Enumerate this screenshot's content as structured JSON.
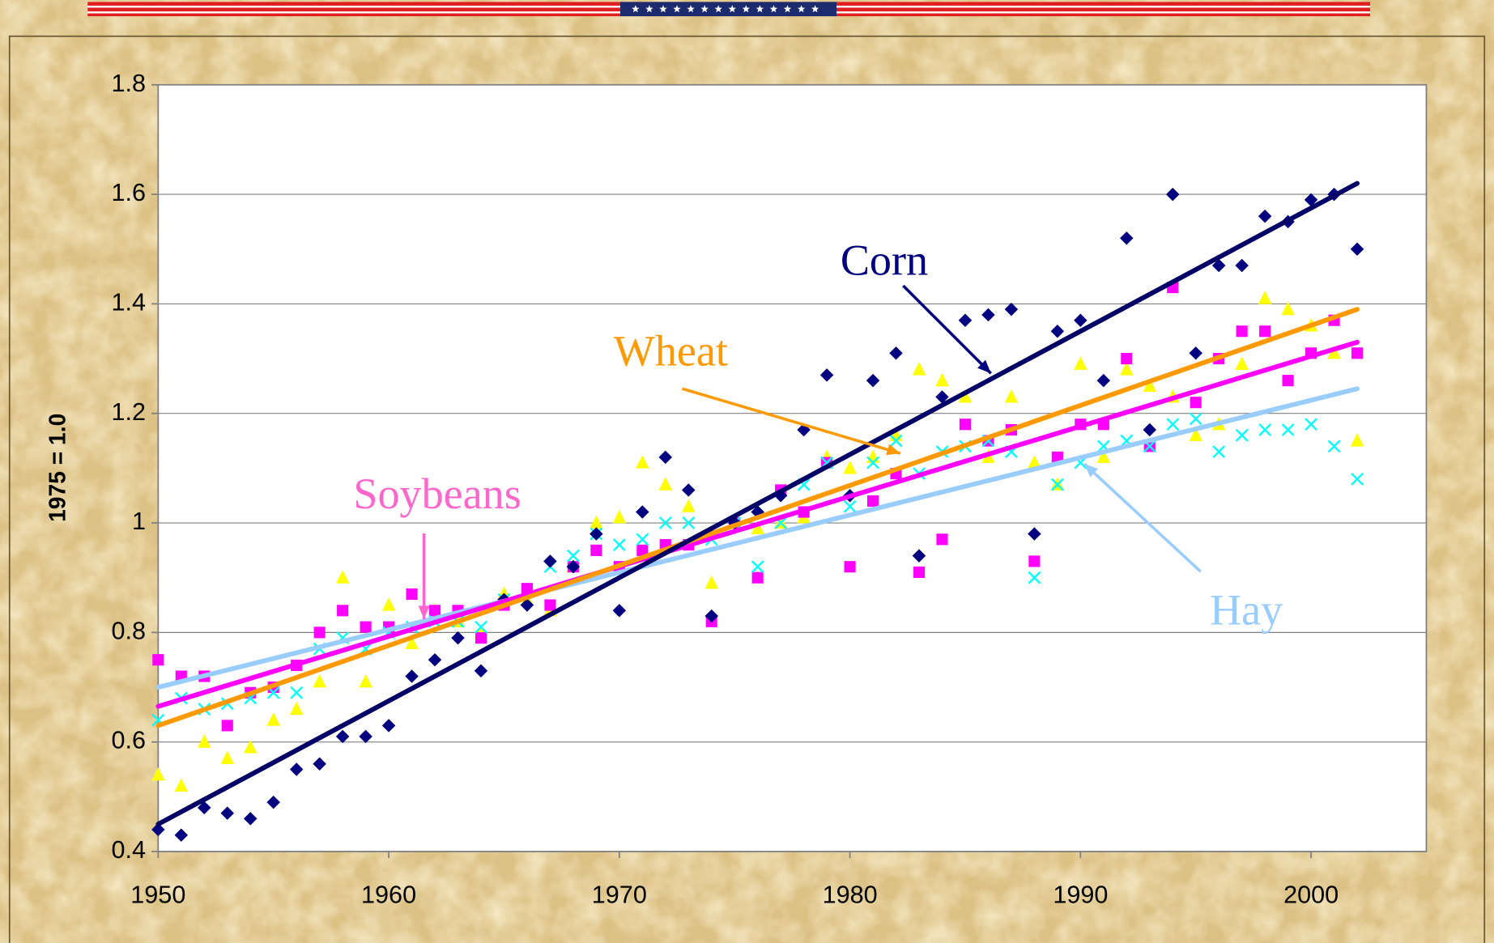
{
  "chart_data": {
    "type": "scatter",
    "y_label": "1975 = 1.0",
    "x": [
      1950,
      1951,
      1952,
      1953,
      1954,
      1955,
      1956,
      1957,
      1958,
      1959,
      1960,
      1961,
      1962,
      1963,
      1964,
      1965,
      1966,
      1967,
      1968,
      1969,
      1970,
      1971,
      1972,
      1973,
      1974,
      1975,
      1976,
      1977,
      1978,
      1979,
      1980,
      1981,
      1982,
      1983,
      1984,
      1985,
      1986,
      1987,
      1988,
      1989,
      1990,
      1991,
      1992,
      1993,
      1994,
      1995,
      1996,
      1997,
      1998,
      1999,
      2000,
      2001,
      2002
    ],
    "trend_x": [
      1950,
      2002
    ],
    "xlim": [
      1950,
      2005
    ],
    "xticks": [
      1950,
      1960,
      1970,
      1980,
      1990,
      2000
    ],
    "ylim": [
      0.4,
      1.8
    ],
    "yticks": [
      0.4,
      0.6,
      0.8,
      1,
      1.2,
      1.4,
      1.6,
      1.8
    ],
    "grid": true,
    "series": [
      {
        "name": "Corn",
        "marker": "diamond",
        "color": "#000080",
        "trend_color": "#000066",
        "label_color": "#000080",
        "values": [
          0.44,
          0.43,
          0.48,
          0.47,
          0.46,
          0.49,
          0.55,
          0.56,
          0.61,
          0.61,
          0.63,
          0.72,
          0.75,
          0.79,
          0.73,
          0.86,
          0.85,
          0.93,
          0.92,
          0.98,
          0.84,
          1.02,
          1.12,
          1.06,
          0.83,
          1.0,
          1.02,
          1.05,
          1.17,
          1.27,
          1.05,
          1.26,
          1.31,
          0.94,
          1.23,
          1.37,
          1.38,
          1.39,
          0.98,
          1.35,
          1.37,
          1.26,
          1.52,
          1.17,
          1.6,
          1.31,
          1.47,
          1.47,
          1.56,
          1.55,
          1.59,
          1.6,
          1.5
        ],
        "trend": [
          0.45,
          1.62
        ]
      },
      {
        "name": "Wheat",
        "marker": "triangle",
        "color": "#ffff00",
        "trend_color": "#ff9900",
        "label_color": "#ff9900",
        "values": [
          0.54,
          0.52,
          0.6,
          0.57,
          0.59,
          0.64,
          0.66,
          0.71,
          0.9,
          0.71,
          0.85,
          0.78,
          0.84,
          0.82,
          0.8,
          0.87,
          0.86,
          0.84,
          0.92,
          1.0,
          1.01,
          1.11,
          1.07,
          1.03,
          0.89,
          1.0,
          0.99,
          1.0,
          1.01,
          1.12,
          1.1,
          1.12,
          1.16,
          1.28,
          1.26,
          1.23,
          1.12,
          1.23,
          1.11,
          1.07,
          1.29,
          1.12,
          1.28,
          1.25,
          1.23,
          1.16,
          1.18,
          1.29,
          1.41,
          1.39,
          1.36,
          1.31,
          1.15
        ],
        "trend": [
          0.63,
          1.39
        ]
      },
      {
        "name": "Soybeans",
        "marker": "square",
        "color": "#ff00ff",
        "trend_color": "#ff00ff",
        "label_color": "#ff66cc",
        "values": [
          0.75,
          0.72,
          0.72,
          0.63,
          0.69,
          0.7,
          0.74,
          0.8,
          0.84,
          0.81,
          0.81,
          0.87,
          0.84,
          0.84,
          0.79,
          0.85,
          0.88,
          0.85,
          0.92,
          0.95,
          0.92,
          0.95,
          0.96,
          0.96,
          0.82,
          1.0,
          0.9,
          1.06,
          1.02,
          1.11,
          0.92,
          1.04,
          1.09,
          0.91,
          0.97,
          1.18,
          1.15,
          1.17,
          0.93,
          1.12,
          1.18,
          1.18,
          1.3,
          1.14,
          1.43,
          1.22,
          1.3,
          1.35,
          1.35,
          1.26,
          1.31,
          1.37,
          1.31
        ],
        "trend": [
          0.665,
          1.33
        ]
      },
      {
        "name": "Hay",
        "marker": "x",
        "color": "#00ffff",
        "trend_color": "#99ccff",
        "label_color": "#99ccff",
        "values": [
          0.64,
          0.68,
          0.66,
          0.67,
          0.68,
          0.69,
          0.69,
          0.77,
          0.79,
          0.77,
          0.8,
          0.81,
          0.82,
          0.82,
          0.81,
          0.86,
          0.86,
          0.92,
          0.94,
          0.98,
          0.96,
          0.97,
          1.0,
          1.0,
          0.97,
          1.0,
          0.92,
          1.0,
          1.07,
          1.11,
          1.03,
          1.11,
          1.15,
          1.09,
          1.13,
          1.14,
          1.15,
          1.13,
          0.9,
          1.07,
          1.11,
          1.14,
          1.15,
          1.14,
          1.18,
          1.19,
          1.13,
          1.16,
          1.17,
          1.17,
          1.18,
          1.14,
          1.08
        ],
        "trend": [
          0.7,
          1.245
        ]
      }
    ]
  }
}
